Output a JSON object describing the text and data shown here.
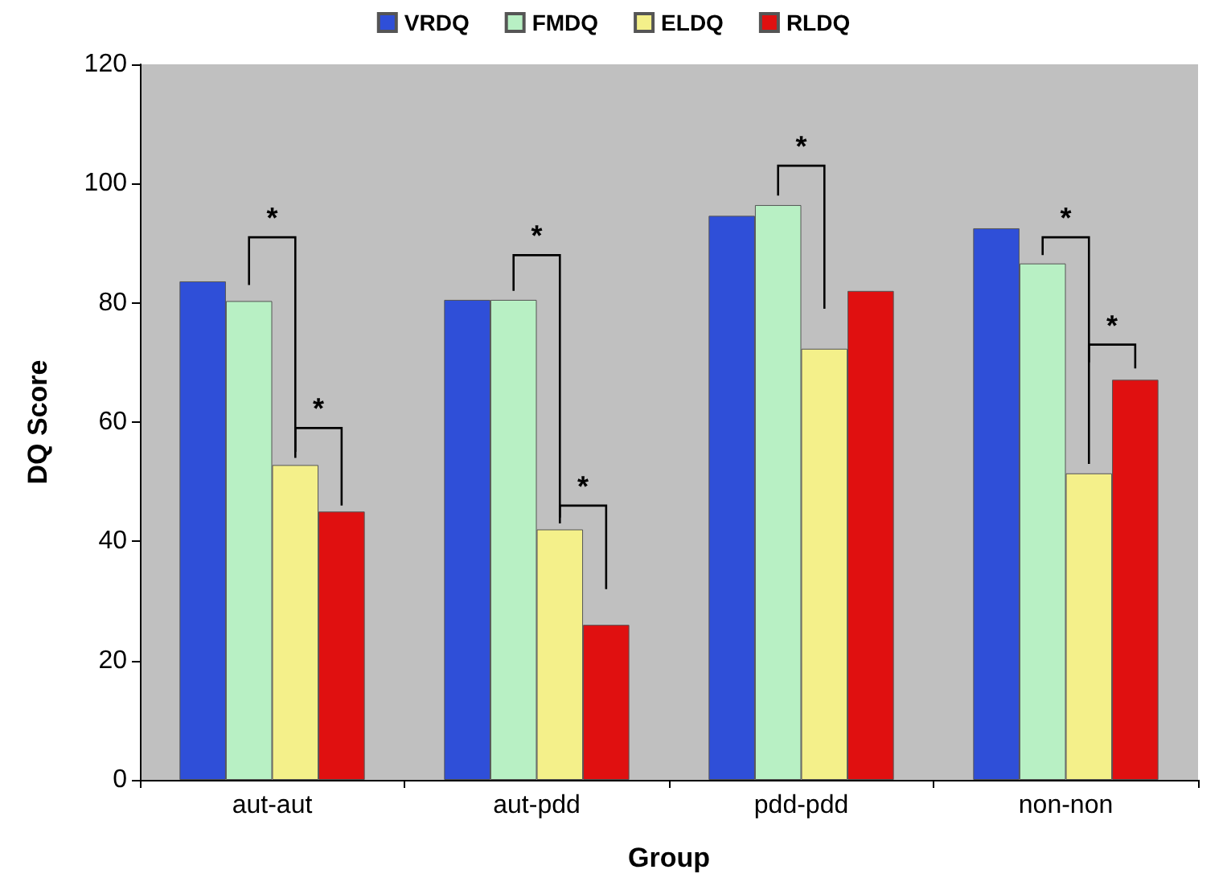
{
  "chart_data": {
    "type": "bar",
    "xlabel": "Group",
    "ylabel": "DQ Score",
    "categories": [
      "aut-aut",
      "aut-pdd",
      "pdd-pdd",
      "non-non"
    ],
    "series": [
      {
        "name": "VRDQ",
        "color": "#2f4fd8",
        "values": [
          83.6,
          80.5,
          94.6,
          92.5
        ]
      },
      {
        "name": "FMDQ",
        "color": "#b8f0c4",
        "values": [
          80.3,
          80.5,
          96.4,
          86.6
        ]
      },
      {
        "name": "ELDQ",
        "color": "#f4f08a",
        "values": [
          52.8,
          42.0,
          72.3,
          51.4
        ]
      },
      {
        "name": "RLDQ",
        "color": "#e01010",
        "values": [
          45.0,
          26.0,
          82.0,
          67.1
        ]
      }
    ],
    "ylim": [
      0,
      120
    ],
    "yticks": [
      0,
      20,
      40,
      60,
      80,
      100,
      120
    ],
    "grid": false,
    "legend": "top",
    "annotations": [
      "*",
      {
        "text": "*",
        "x": "aut-aut",
        "y": 59
      },
      "*",
      {
        "text": "*",
        "x": "aut-pdd",
        "y": 46
      },
      "*",
      "*",
      {
        "text": "*",
        "x": "non-non",
        "y": 73
      }
    ]
  }
}
